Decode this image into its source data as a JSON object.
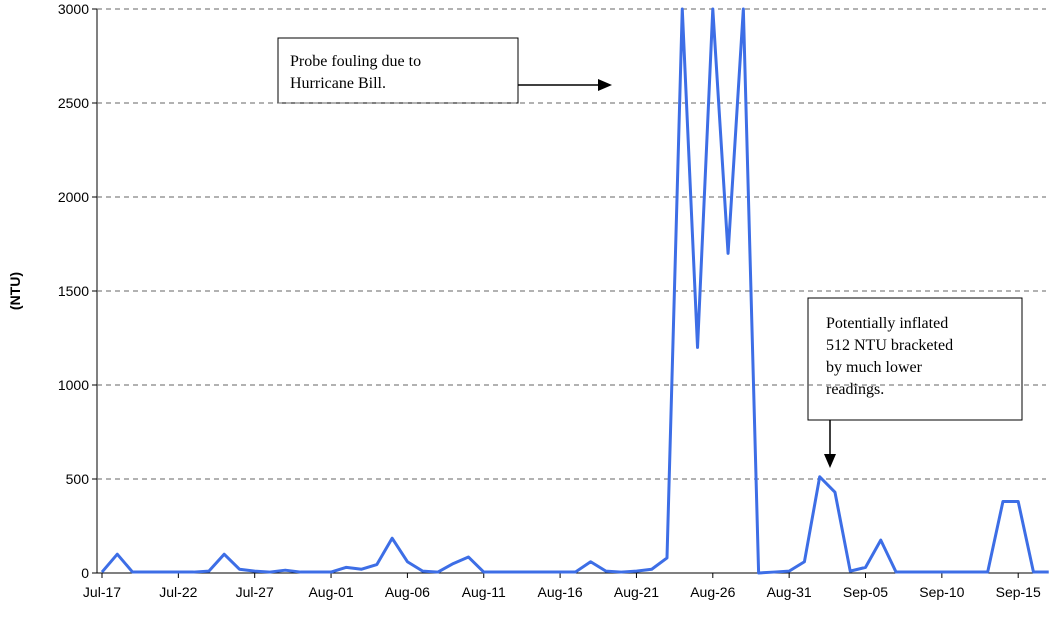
{
  "chart_data": {
    "type": "line",
    "y_label": "(NTU)",
    "categories": [
      "Jul-17",
      null,
      null,
      null,
      null,
      "Jul-22",
      null,
      null,
      null,
      null,
      "Jul-27",
      null,
      null,
      null,
      null,
      "Aug-01",
      null,
      null,
      null,
      null,
      "Aug-06",
      null,
      null,
      null,
      null,
      "Aug-11",
      null,
      null,
      null,
      null,
      "Aug-16",
      null,
      null,
      null,
      null,
      "Aug-21",
      null,
      null,
      null,
      null,
      "Aug-26",
      null,
      null,
      null,
      null,
      "Aug-31",
      null,
      null,
      null,
      null,
      "Sep-05",
      null,
      null,
      null,
      null,
      "Sep-10",
      null,
      null,
      null,
      null,
      "Sep-15",
      null,
      null
    ],
    "series": [
      {
        "color": "#3d6ee6",
        "values": [
          5,
          100,
          5,
          5,
          5,
          5,
          5,
          10,
          100,
          20,
          10,
          5,
          15,
          5,
          5,
          5,
          30,
          20,
          45,
          185,
          60,
          10,
          5,
          50,
          85,
          5,
          5,
          5,
          5,
          5,
          5,
          5,
          60,
          10,
          5,
          10,
          20,
          80,
          3000,
          1200,
          3000,
          1700,
          3000,
          0,
          5,
          10,
          60,
          512,
          430,
          10,
          30,
          175,
          5,
          5,
          5,
          5,
          5,
          5,
          5,
          380,
          380,
          5,
          5
        ]
      }
    ],
    "ylim": [
      0,
      3000
    ],
    "yticks": [
      0,
      500,
      1000,
      1500,
      2000,
      2500,
      3000
    ],
    "grid": true,
    "annotations": [
      {
        "lines": [
          "Probe fouling due to",
          "Hurricane Bill."
        ]
      },
      {
        "lines": [
          "Potentially inflated",
          "512 NTU bracketed",
          "by much lower",
          "readings."
        ]
      }
    ]
  }
}
